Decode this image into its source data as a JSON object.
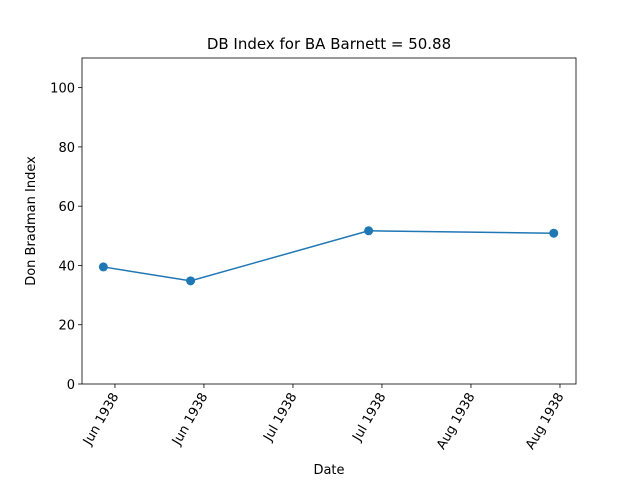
{
  "chart_data": {
    "type": "line",
    "title": "DB Index for BA Barnett = 50.88",
    "x_label": "Date",
    "y_label": "Don Bradman Index",
    "x": [
      -0.13,
      0.85,
      2.85,
      4.93
    ],
    "series": [
      {
        "name": "BA Barnett",
        "color": "#1f77b4",
        "values": [
          39.5,
          34.8,
          51.7,
          50.88
        ]
      }
    ],
    "xlim": [
      -0.37,
      5.18
    ],
    "xticks": [
      {
        "value": 0,
        "label": "Jun 1938"
      },
      {
        "value": 1,
        "label": "Jun 1938"
      },
      {
        "value": 2,
        "label": "Jul 1938"
      },
      {
        "value": 3,
        "label": "Jul 1938"
      },
      {
        "value": 4,
        "label": "Aug 1938"
      },
      {
        "value": 5,
        "label": "Aug 1938"
      }
    ],
    "ylim": [
      0,
      110
    ],
    "yticks": [
      0,
      20,
      40,
      60,
      80,
      100
    ]
  }
}
